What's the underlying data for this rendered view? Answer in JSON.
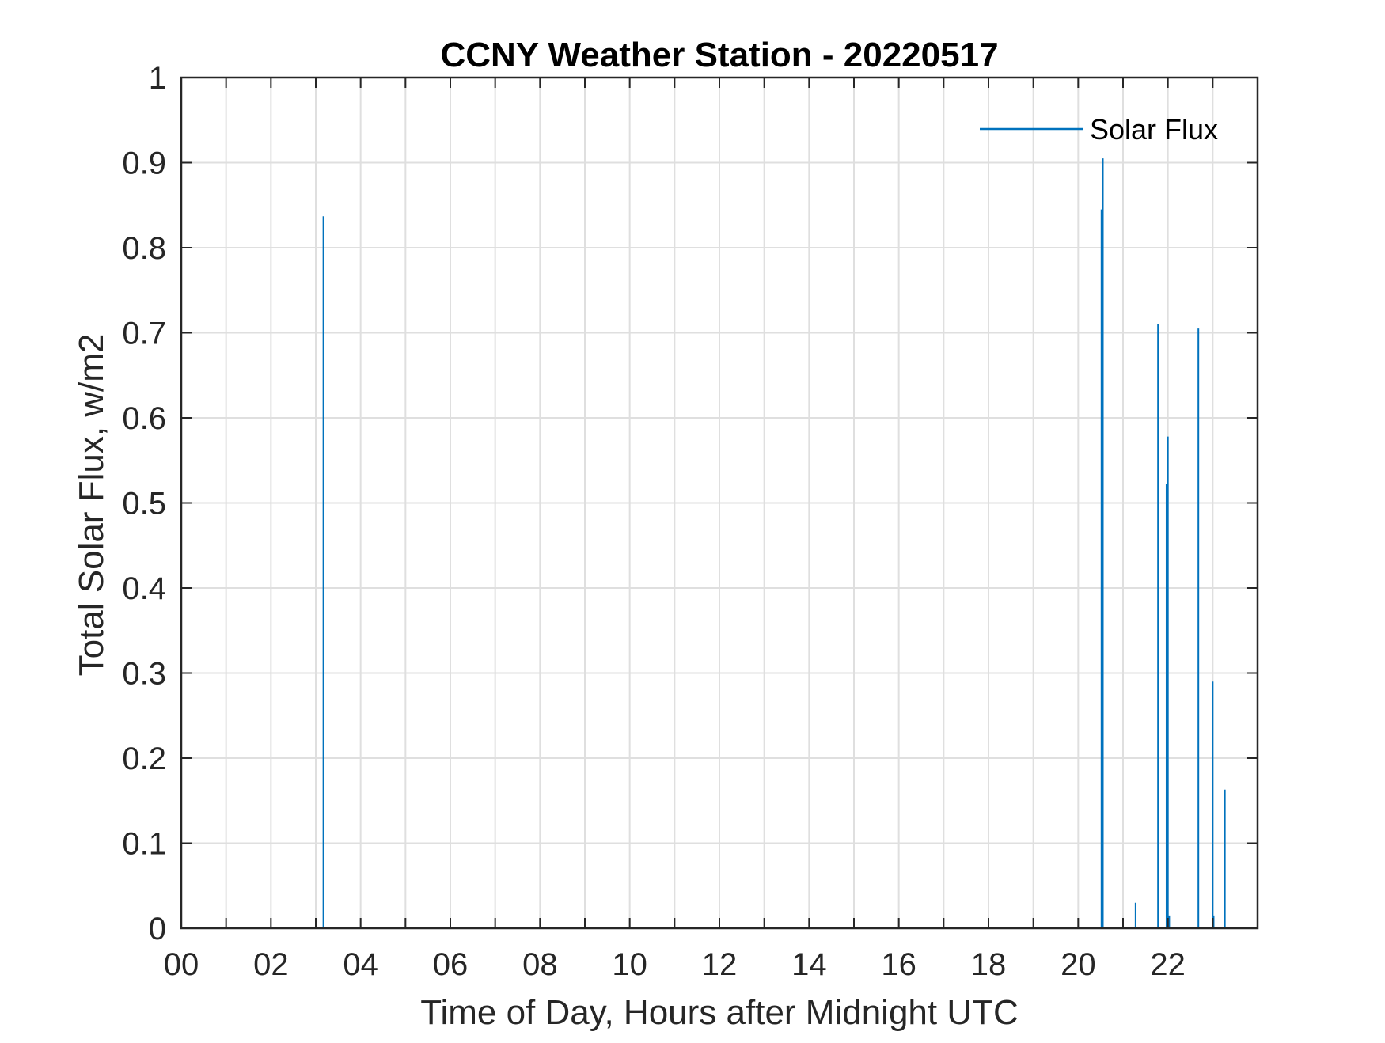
{
  "chart_data": {
    "type": "line",
    "title": "CCNY Weather Station - 20220517",
    "xlabel": "Time of Day, Hours after Midnight UTC",
    "ylabel": "Total Solar Flux, w/m2",
    "xlim": [
      0,
      24
    ],
    "ylim": [
      0,
      1
    ],
    "x_tick_values": [
      0,
      2,
      4,
      6,
      8,
      10,
      12,
      14,
      16,
      18,
      20,
      22
    ],
    "x_tick_labels": [
      "00",
      "02",
      "04",
      "06",
      "08",
      "10",
      "12",
      "14",
      "16",
      "18",
      "20",
      "22"
    ],
    "x_minor_ticks": [
      1,
      3,
      5,
      7,
      9,
      11,
      13,
      15,
      17,
      19,
      21,
      23
    ],
    "y_tick_values": [
      0,
      0.1,
      0.2,
      0.3,
      0.4,
      0.5,
      0.6,
      0.7,
      0.8,
      0.9,
      1
    ],
    "y_tick_labels": [
      "0",
      "0.1",
      "0.2",
      "0.3",
      "0.4",
      "0.5",
      "0.6",
      "0.7",
      "0.8",
      "0.9",
      "1"
    ],
    "grid": true,
    "legend_position": "top-right",
    "series": [
      {
        "name": "Solar Flux",
        "color": "#0072BD",
        "spikes": [
          {
            "x": 3.17,
            "y": 0.837
          },
          {
            "x": 20.52,
            "y": 0.845
          },
          {
            "x": 20.55,
            "y": 0.905
          },
          {
            "x": 21.28,
            "y": 0.03
          },
          {
            "x": 21.78,
            "y": 0.71
          },
          {
            "x": 21.97,
            "y": 0.522
          },
          {
            "x": 22.0,
            "y": 0.578
          },
          {
            "x": 22.03,
            "y": 0.015
          },
          {
            "x": 22.68,
            "y": 0.705
          },
          {
            "x": 23.0,
            "y": 0.29
          },
          {
            "x": 23.02,
            "y": 0.015
          },
          {
            "x": 23.27,
            "y": 0.163
          }
        ]
      }
    ]
  }
}
